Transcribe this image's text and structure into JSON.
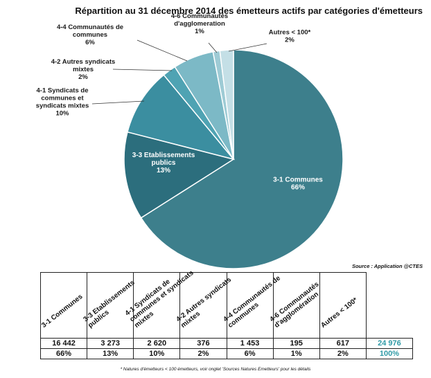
{
  "chart_data": {
    "type": "pie",
    "title": "Répartition au 31 décembre 2014 des émetteurs actifs par catégories d'émetteurs",
    "slices": [
      {
        "name": "3-1 Communes",
        "label_lines": [
          "3-1 Communes",
          "66%"
        ],
        "value": 66,
        "color": "#3d7f8c"
      },
      {
        "name": "3-3 Etablissements publics",
        "label_lines": [
          "3-3 Etablissements",
          "publics",
          "13%"
        ],
        "value": 13,
        "color": "#2c6e7d"
      },
      {
        "name": "4-1 Syndicats de communes et syndicats mixtes",
        "label_lines": [
          "4-1 Syndicats de",
          "communes et",
          "syndicats mixtes",
          "10%"
        ],
        "value": 10,
        "color": "#3b8ea0"
      },
      {
        "name": "4-2 Autres syndicats mixtes",
        "label_lines": [
          "4-2 Autres syndicats",
          "mixtes",
          "2%"
        ],
        "value": 2,
        "color": "#4fa3b3"
      },
      {
        "name": "4-4 Communautés de communes",
        "label_lines": [
          "4-4 Communautés de",
          "communes",
          "6%"
        ],
        "value": 6,
        "color": "#7cb9c6"
      },
      {
        "name": "4-6 Communautés d'agglomeration",
        "label_lines": [
          "4-6 Communautés",
          "d'agglomeration",
          "1%"
        ],
        "value": 1,
        "color": "#9ecbd5"
      },
      {
        "name": "Autres < 100*",
        "label_lines": [
          "Autres < 100*",
          "2%"
        ],
        "value": 2,
        "color": "#c4dfe6"
      }
    ],
    "source": "Source : Application @CTES"
  },
  "table": {
    "headers": [
      "3-1 Communes",
      "3-3 Etablissements publics",
      "4-1 Syndicats de communes et syndicats mixtes",
      "4-2 Autres syndicats mixtes",
      "4-4 Communautés de communes",
      "4-6 Communautés d'agglomération",
      "Autres < 100*"
    ],
    "counts": [
      "16 442",
      "3 273",
      "2 620",
      "376",
      "1 453",
      "195",
      "617",
      "24 976"
    ],
    "percents": [
      "66%",
      "13%",
      "10%",
      "2%",
      "6%",
      "1%",
      "2%",
      "100%"
    ]
  },
  "footnote": "* Natures d'émetteurs < 100 émetteurs, voir onglet 'Sources Natures Emetteurs' pour les détails"
}
